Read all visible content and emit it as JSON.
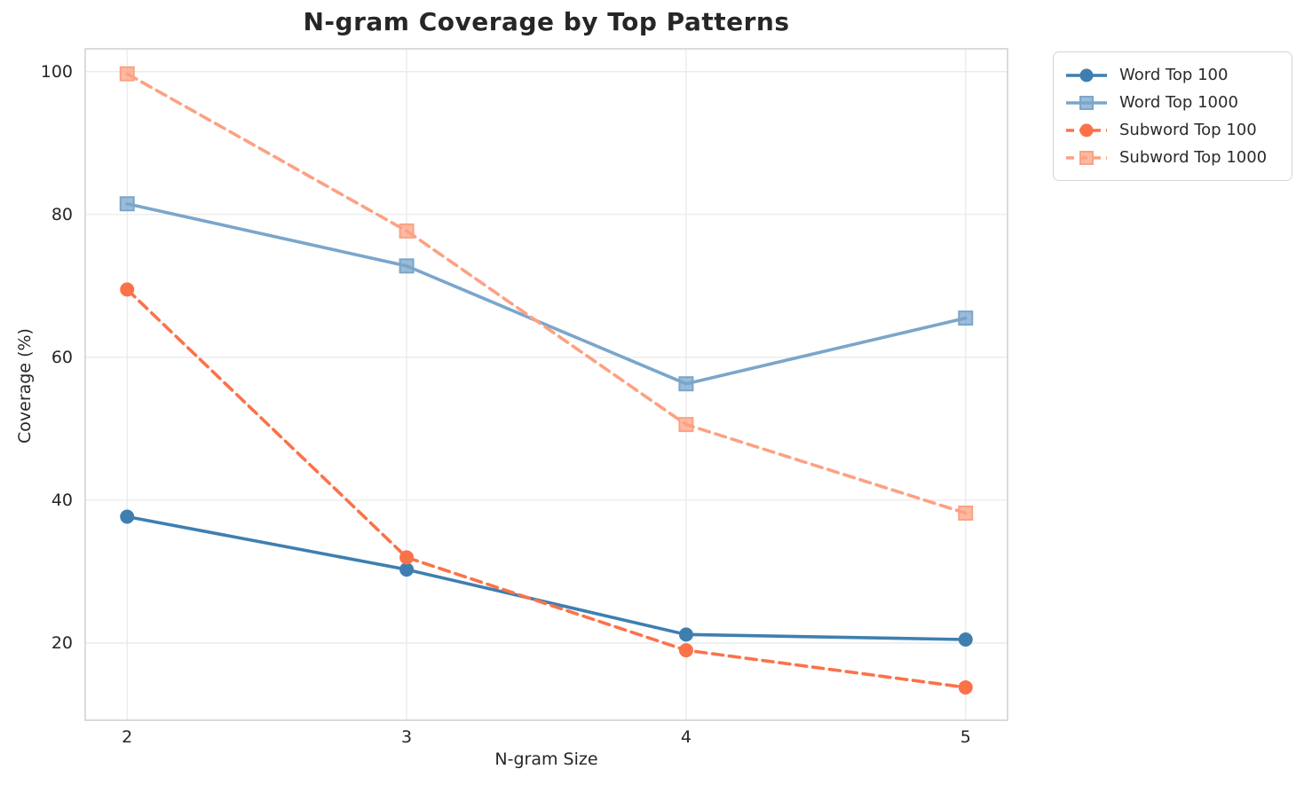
{
  "title": "N-gram Coverage by Top Patterns",
  "chart_data": {
    "type": "line",
    "title": "N-gram Coverage by Top Patterns",
    "xlabel": "N-gram Size",
    "ylabel": "Coverage (%)",
    "x": [
      2,
      3,
      4,
      5
    ],
    "xticks": [
      2,
      3,
      4,
      5
    ],
    "yticks": [
      20,
      40,
      60,
      80,
      100
    ],
    "xlim": [
      1.85,
      5.15
    ],
    "ylim": [
      9.2,
      103.2
    ],
    "grid": true,
    "legend_position": "outside-upper-right",
    "series": [
      {
        "name": "Word Top 100",
        "values": [
          37.7,
          30.3,
          21.2,
          20.5
        ],
        "color": "#3E7FB0",
        "marker": "circle",
        "line_style": "solid"
      },
      {
        "name": "Word Top 1000",
        "values": [
          81.5,
          72.8,
          56.3,
          65.5
        ],
        "color": "#7AA6CB",
        "marker": "square",
        "line_style": "solid"
      },
      {
        "name": "Subword Top 100",
        "values": [
          69.5,
          32.0,
          19.0,
          13.8
        ],
        "color": "#FB7249",
        "marker": "circle",
        "line_style": "dashed"
      },
      {
        "name": "Subword Top 1000",
        "values": [
          99.7,
          77.7,
          50.6,
          38.2
        ],
        "color": "#FCA183",
        "marker": "square",
        "line_style": "dashed"
      }
    ],
    "style": {
      "grid_color": "#e8e8e8",
      "spine_color": "#d2d2d2",
      "text_color": "#262626"
    }
  }
}
